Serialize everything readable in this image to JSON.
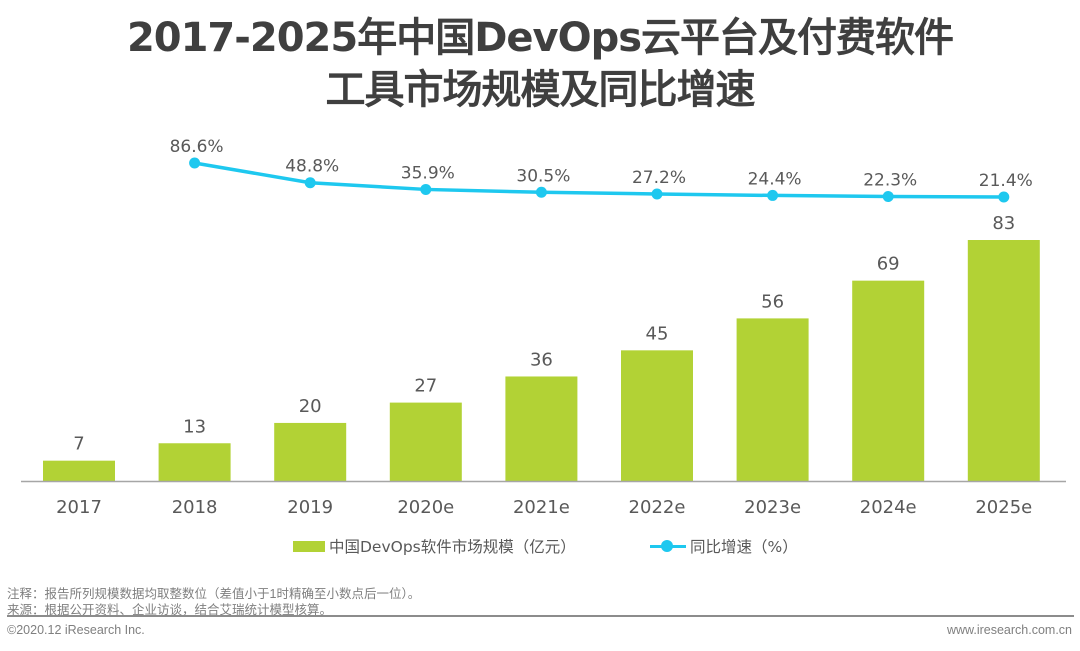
{
  "title": {
    "line1": "2017-2025年中国DevOps云平台及付费软件",
    "line2": "工具市场规模及同比增速"
  },
  "chart_data": {
    "type": "bar",
    "title": "2017-2025年中国DevOps云平台及付费软件工具市场规模及同比增速",
    "xlabel": "",
    "ylabel": "",
    "categories": [
      "2017",
      "2018",
      "2019",
      "2020e",
      "2021e",
      "2022e",
      "2023e",
      "2024e",
      "2025e"
    ],
    "series": [
      {
        "name": "中国DevOps软件市场规模（亿元）",
        "type": "bar",
        "color": "#b2d235",
        "values": [
          7,
          13,
          20,
          27,
          36,
          45,
          56,
          69,
          83
        ],
        "labels": [
          "7",
          "13",
          "20",
          "27",
          "36",
          "45",
          "56",
          "69",
          "83"
        ]
      },
      {
        "name": "同比增速（%）",
        "type": "line",
        "color": "#1ec8ef",
        "values": [
          null,
          86.6,
          48.8,
          35.9,
          30.5,
          27.2,
          24.4,
          22.3,
          21.4
        ],
        "labels": [
          "",
          "86.6%",
          "48.8%",
          "35.9%",
          "30.5%",
          "27.2%",
          "24.4%",
          "22.3%",
          "21.4%"
        ]
      }
    ],
    "ylim": [
      0,
      83
    ],
    "grid": false,
    "legend_position": "bottom"
  },
  "legend": {
    "bar_label": "中国DevOps软件市场规模（亿元）",
    "line_label": "同比增速（%）"
  },
  "notes": {
    "note": "注释：报告所列规模数据均取整数位（差值小于1时精确至小数点后一位）。",
    "source": "来源：根据公开资料、企业访谈，结合艾瑞统计模型核算。"
  },
  "footer": {
    "copyright": "©2020.12 iResearch Inc.",
    "website": "www.iresearch.com.cn"
  }
}
